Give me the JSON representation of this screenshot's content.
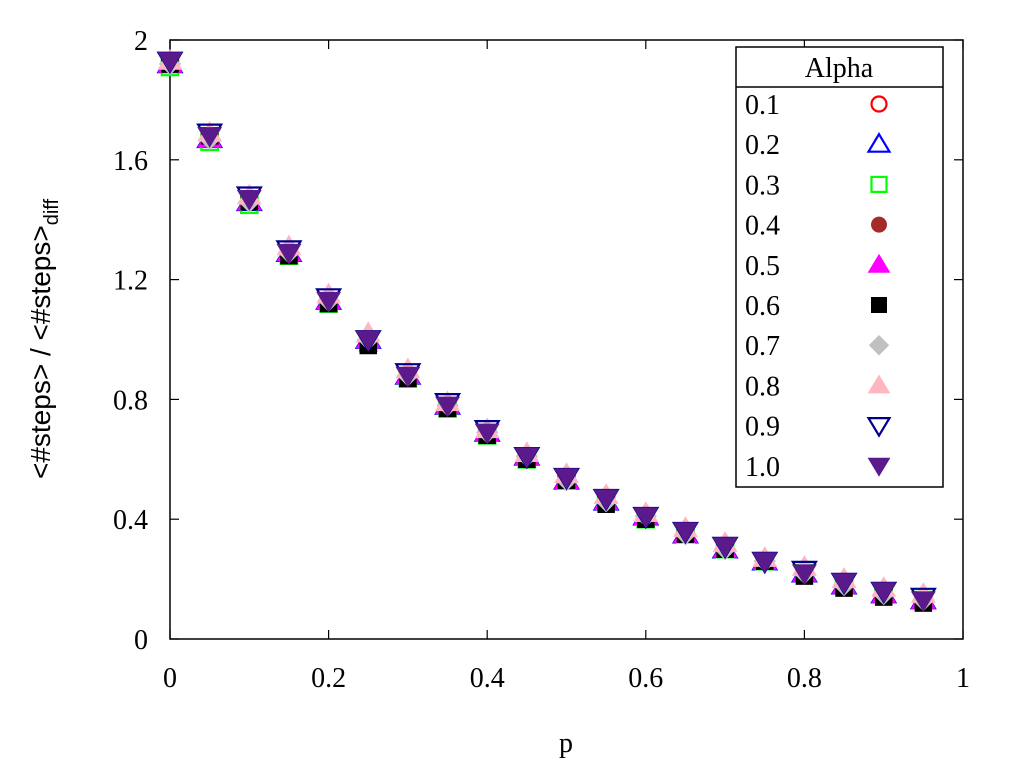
{
  "chart_data": {
    "type": "scatter",
    "xlabel": "p",
    "ylabel_main": "<#steps> / <#steps>",
    "ylabel_sub": "diff",
    "xlim": [
      0,
      1
    ],
    "ylim": [
      0,
      2
    ],
    "xticks": [
      "0",
      "0.2",
      "0.4",
      "0.6",
      "0.8",
      "1"
    ],
    "yticks": [
      "0",
      "0.4",
      "0.8",
      "1.2",
      "1.6",
      "2"
    ],
    "grid": false,
    "legend_title": "Alpha",
    "legend_position": "top-right",
    "x": [
      0,
      0.05,
      0.1,
      0.15,
      0.2,
      0.25,
      0.3,
      0.35,
      0.4,
      0.45,
      0.5,
      0.55,
      0.6,
      0.65,
      0.7,
      0.75,
      0.8,
      0.85,
      0.9,
      0.95
    ],
    "series": [
      {
        "name": "0.1",
        "color": "#ff0000",
        "marker": "circle-open",
        "values": [
          1.92,
          1.67,
          1.46,
          1.29,
          1.13,
          1.0,
          0.88,
          0.78,
          0.69,
          0.61,
          0.53,
          0.46,
          0.41,
          0.35,
          0.3,
          0.26,
          0.22,
          0.18,
          0.15,
          0.13
        ]
      },
      {
        "name": "0.2",
        "color": "#0000ff",
        "marker": "triangle-up-open",
        "values": [
          1.92,
          1.67,
          1.46,
          1.29,
          1.13,
          1.0,
          0.88,
          0.78,
          0.69,
          0.61,
          0.53,
          0.46,
          0.41,
          0.35,
          0.3,
          0.26,
          0.22,
          0.18,
          0.15,
          0.13
        ]
      },
      {
        "name": "0.3",
        "color": "#00ff00",
        "marker": "square-open",
        "values": [
          1.91,
          1.66,
          1.45,
          1.28,
          1.12,
          0.99,
          0.87,
          0.77,
          0.68,
          0.6,
          0.53,
          0.46,
          0.4,
          0.35,
          0.3,
          0.26,
          0.22,
          0.18,
          0.15,
          0.13
        ]
      },
      {
        "name": "0.4",
        "color": "#a52a2a",
        "marker": "circle-filled",
        "values": [
          1.92,
          1.67,
          1.46,
          1.29,
          1.13,
          1.0,
          0.88,
          0.78,
          0.69,
          0.61,
          0.53,
          0.46,
          0.41,
          0.35,
          0.3,
          0.26,
          0.22,
          0.18,
          0.15,
          0.13
        ]
      },
      {
        "name": "0.5",
        "color": "#ff00ff",
        "marker": "triangle-up-filled",
        "values": [
          1.92,
          1.67,
          1.46,
          1.29,
          1.13,
          1.0,
          0.88,
          0.78,
          0.69,
          0.61,
          0.53,
          0.46,
          0.41,
          0.35,
          0.3,
          0.26,
          0.22,
          0.18,
          0.15,
          0.13
        ]
      },
      {
        "name": "0.6",
        "color": "#000000",
        "marker": "square-filled",
        "values": [
          1.92,
          1.68,
          1.46,
          1.28,
          1.12,
          0.98,
          0.87,
          0.77,
          0.68,
          0.6,
          0.53,
          0.45,
          0.4,
          0.35,
          0.3,
          0.26,
          0.21,
          0.17,
          0.14,
          0.12
        ]
      },
      {
        "name": "0.7",
        "color": "#c0c0c0",
        "marker": "diamond-filled",
        "values": [
          1.92,
          1.67,
          1.46,
          1.29,
          1.13,
          1.0,
          0.88,
          0.78,
          0.69,
          0.61,
          0.53,
          0.46,
          0.41,
          0.35,
          0.3,
          0.26,
          0.22,
          0.18,
          0.15,
          0.13
        ]
      },
      {
        "name": "0.8",
        "color": "#ffb6c1",
        "marker": "triangle-up-filled",
        "values": [
          1.93,
          1.69,
          1.48,
          1.31,
          1.15,
          1.02,
          0.9,
          0.79,
          0.7,
          0.62,
          0.55,
          0.48,
          0.42,
          0.37,
          0.32,
          0.27,
          0.24,
          0.2,
          0.17,
          0.15
        ]
      },
      {
        "name": "0.9",
        "color": "#00008b",
        "marker": "triangle-down-open",
        "values": [
          1.93,
          1.69,
          1.48,
          1.3,
          1.14,
          1.0,
          0.89,
          0.79,
          0.7,
          0.61,
          0.54,
          0.47,
          0.41,
          0.36,
          0.31,
          0.26,
          0.23,
          0.19,
          0.16,
          0.14
        ]
      },
      {
        "name": "1.0",
        "color": "#5b1a8c",
        "marker": "triangle-down-filled",
        "values": [
          1.93,
          1.68,
          1.47,
          1.29,
          1.13,
          1.0,
          0.88,
          0.78,
          0.69,
          0.61,
          0.54,
          0.47,
          0.41,
          0.36,
          0.31,
          0.26,
          0.22,
          0.19,
          0.16,
          0.13
        ]
      }
    ]
  }
}
